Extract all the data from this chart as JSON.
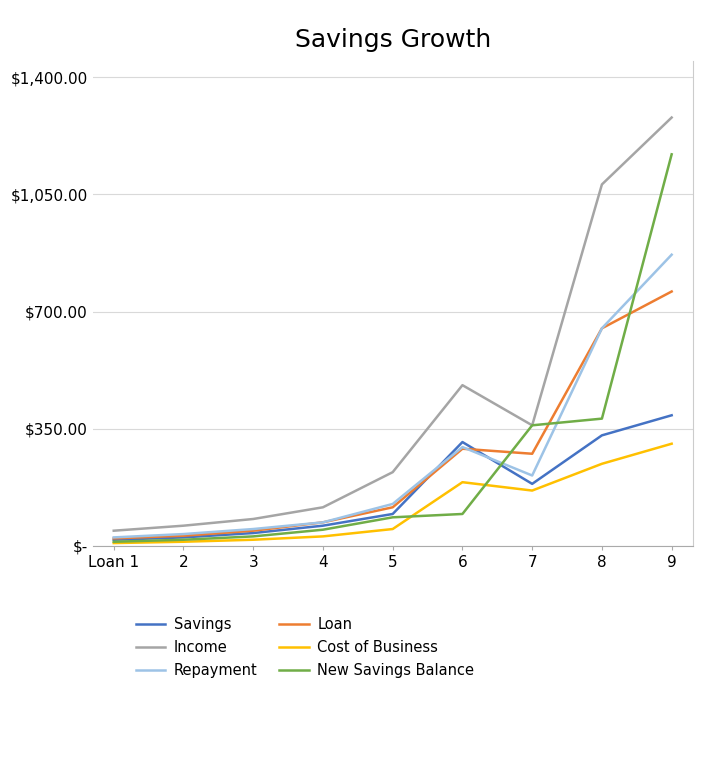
{
  "title": "Savings Growth",
  "x_labels": [
    "Loan 1",
    "2",
    "3",
    "4",
    "5",
    "6",
    "7",
    "8",
    "9"
  ],
  "x_values": [
    1,
    2,
    3,
    4,
    5,
    6,
    7,
    8,
    9
  ],
  "series": {
    "Savings": {
      "values": [
        18,
        25,
        38,
        60,
        95,
        310,
        185,
        330,
        390
      ],
      "color": "#4472C4",
      "linewidth": 1.8
    },
    "Loan": {
      "values": [
        22,
        30,
        45,
        70,
        115,
        290,
        275,
        650,
        760
      ],
      "color": "#ED7D31",
      "linewidth": 1.8
    },
    "Income": {
      "values": [
        45,
        60,
        80,
        115,
        220,
        480,
        360,
        1080,
        1280
      ],
      "color": "#A5A5A5",
      "linewidth": 1.8
    },
    "Cost of Business": {
      "values": [
        8,
        12,
        18,
        28,
        50,
        190,
        165,
        245,
        305
      ],
      "color": "#FFC000",
      "linewidth": 1.8
    },
    "Repayment": {
      "values": [
        25,
        35,
        50,
        70,
        125,
        295,
        210,
        650,
        870
      ],
      "color": "#9DC3E6",
      "linewidth": 1.8
    },
    "New Savings Balance": {
      "values": [
        12,
        18,
        28,
        48,
        85,
        95,
        360,
        380,
        1170
      ],
      "color": "#70AD47",
      "linewidth": 1.8
    }
  },
  "ylim": [
    0,
    1450
  ],
  "yticks": [
    0,
    350,
    700,
    1050,
    1400
  ],
  "ytick_labels": [
    "$-",
    "$350.00",
    "$700.00",
    "$1,050.00",
    "$1,400.00"
  ],
  "background_color": "#FFFFFF",
  "title_fontsize": 18,
  "legend_fontsize": 10.5,
  "tick_fontsize": 11,
  "grid_color": "#D9D9D9",
  "grid_linewidth": 0.8
}
